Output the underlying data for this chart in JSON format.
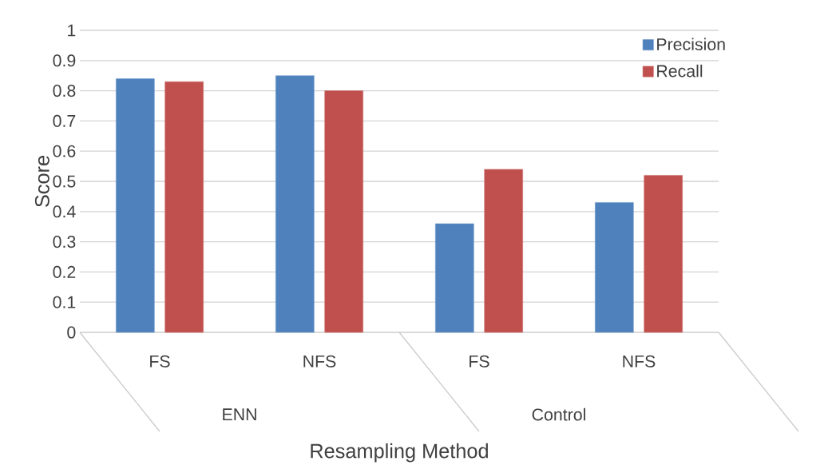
{
  "chart_data": {
    "type": "bar",
    "xlabel": "Resampling Method",
    "ylabel": "Score",
    "categories": [
      "FS",
      "NFS",
      "FS",
      "NFS"
    ],
    "series": [
      {
        "name": "Precision",
        "color": "#4f81bd",
        "values": [
          0.84,
          0.85,
          0.36,
          0.43
        ]
      },
      {
        "name": "Recall",
        "color": "#c0504d",
        "values": [
          0.83,
          0.8,
          0.54,
          0.52
        ]
      }
    ],
    "annotations": [
      "ENN",
      "Control"
    ],
    "ylim": [
      0,
      1
    ],
    "yticks": [
      0,
      0.1,
      0.2,
      0.3,
      0.4,
      0.5,
      0.6,
      0.7,
      0.8,
      0.9,
      1
    ],
    "grid": "y",
    "legend": "top right"
  }
}
